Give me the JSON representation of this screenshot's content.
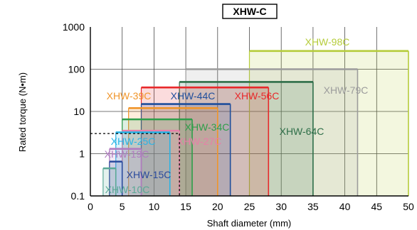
{
  "chart_data": {
    "type": "area",
    "title": "XHW-C",
    "xlabel": "Shaft diameter (mm)",
    "ylabel": "Rated torque (N•m)",
    "xlim": [
      0,
      50
    ],
    "ylim": [
      0.1,
      1000
    ],
    "y_scale": "log",
    "x_ticks": [
      "0",
      "5",
      "10",
      "15",
      "20",
      "25",
      "30",
      "35",
      "40",
      "45",
      "50"
    ],
    "y_ticks": [
      "0.1",
      "1",
      "10",
      "100",
      "1000"
    ],
    "grid": true,
    "reference_point": {
      "x": 14,
      "y": 3
    },
    "series": [
      {
        "name": "XHW-98C",
        "x_min": 25,
        "x_max": 50,
        "torque": 270,
        "color": "#b5cc3a"
      },
      {
        "name": "XHW-79C",
        "x_min": 15,
        "x_max": 42,
        "torque": 100,
        "color": "#9c9c9c"
      },
      {
        "name": "XHW-64C",
        "x_min": 14,
        "x_max": 35,
        "torque": 50,
        "color": "#2e6e48"
      },
      {
        "name": "XHW-56C",
        "x_min": 8,
        "x_max": 28,
        "torque": 37,
        "color": "#e8282a"
      },
      {
        "name": "XHW-44C",
        "x_min": 8,
        "x_max": 22,
        "torque": 15,
        "color": "#1f4e9c"
      },
      {
        "name": "XHW-39C",
        "x_min": 6,
        "x_max": 20,
        "torque": 12,
        "color": "#f0952a"
      },
      {
        "name": "XHW-34C",
        "x_min": 5,
        "x_max": 16,
        "torque": 6.5,
        "color": "#2e9e4a"
      },
      {
        "name": "XHW-27C",
        "x_min": 5,
        "x_max": 14,
        "torque": 3.5,
        "color": "#e77fa8"
      },
      {
        "name": "XHW-25C",
        "x_min": 4,
        "x_max": 12.5,
        "torque": 3.2,
        "color": "#29b4e6"
      },
      {
        "name": "XHW-19C",
        "x_min": 3,
        "x_max": 8,
        "torque": 1.3,
        "color": "#b07cc0"
      },
      {
        "name": "XHW-15C",
        "x_min": 3,
        "x_max": 5,
        "torque": 0.65,
        "color": "#2a4a9c"
      },
      {
        "name": "XHW-10C",
        "x_min": 2,
        "x_max": 4,
        "torque": 0.45,
        "color": "#5aa896"
      }
    ]
  }
}
